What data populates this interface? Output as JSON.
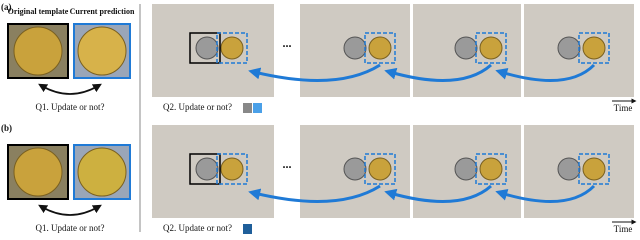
{
  "figure": {
    "rows": [
      {
        "label": "(a)",
        "template_caption": "Original template",
        "prediction_caption": "Current prediction",
        "q1": "Q1. Update or not?",
        "q2": "Q2. Update or not?",
        "ellipsis": "...",
        "time": "Time"
      },
      {
        "label": "(b)",
        "q1": "Q1. Update or not?",
        "q2": "Q2. Update or not?",
        "ellipsis": "...",
        "time": "Time"
      }
    ]
  }
}
